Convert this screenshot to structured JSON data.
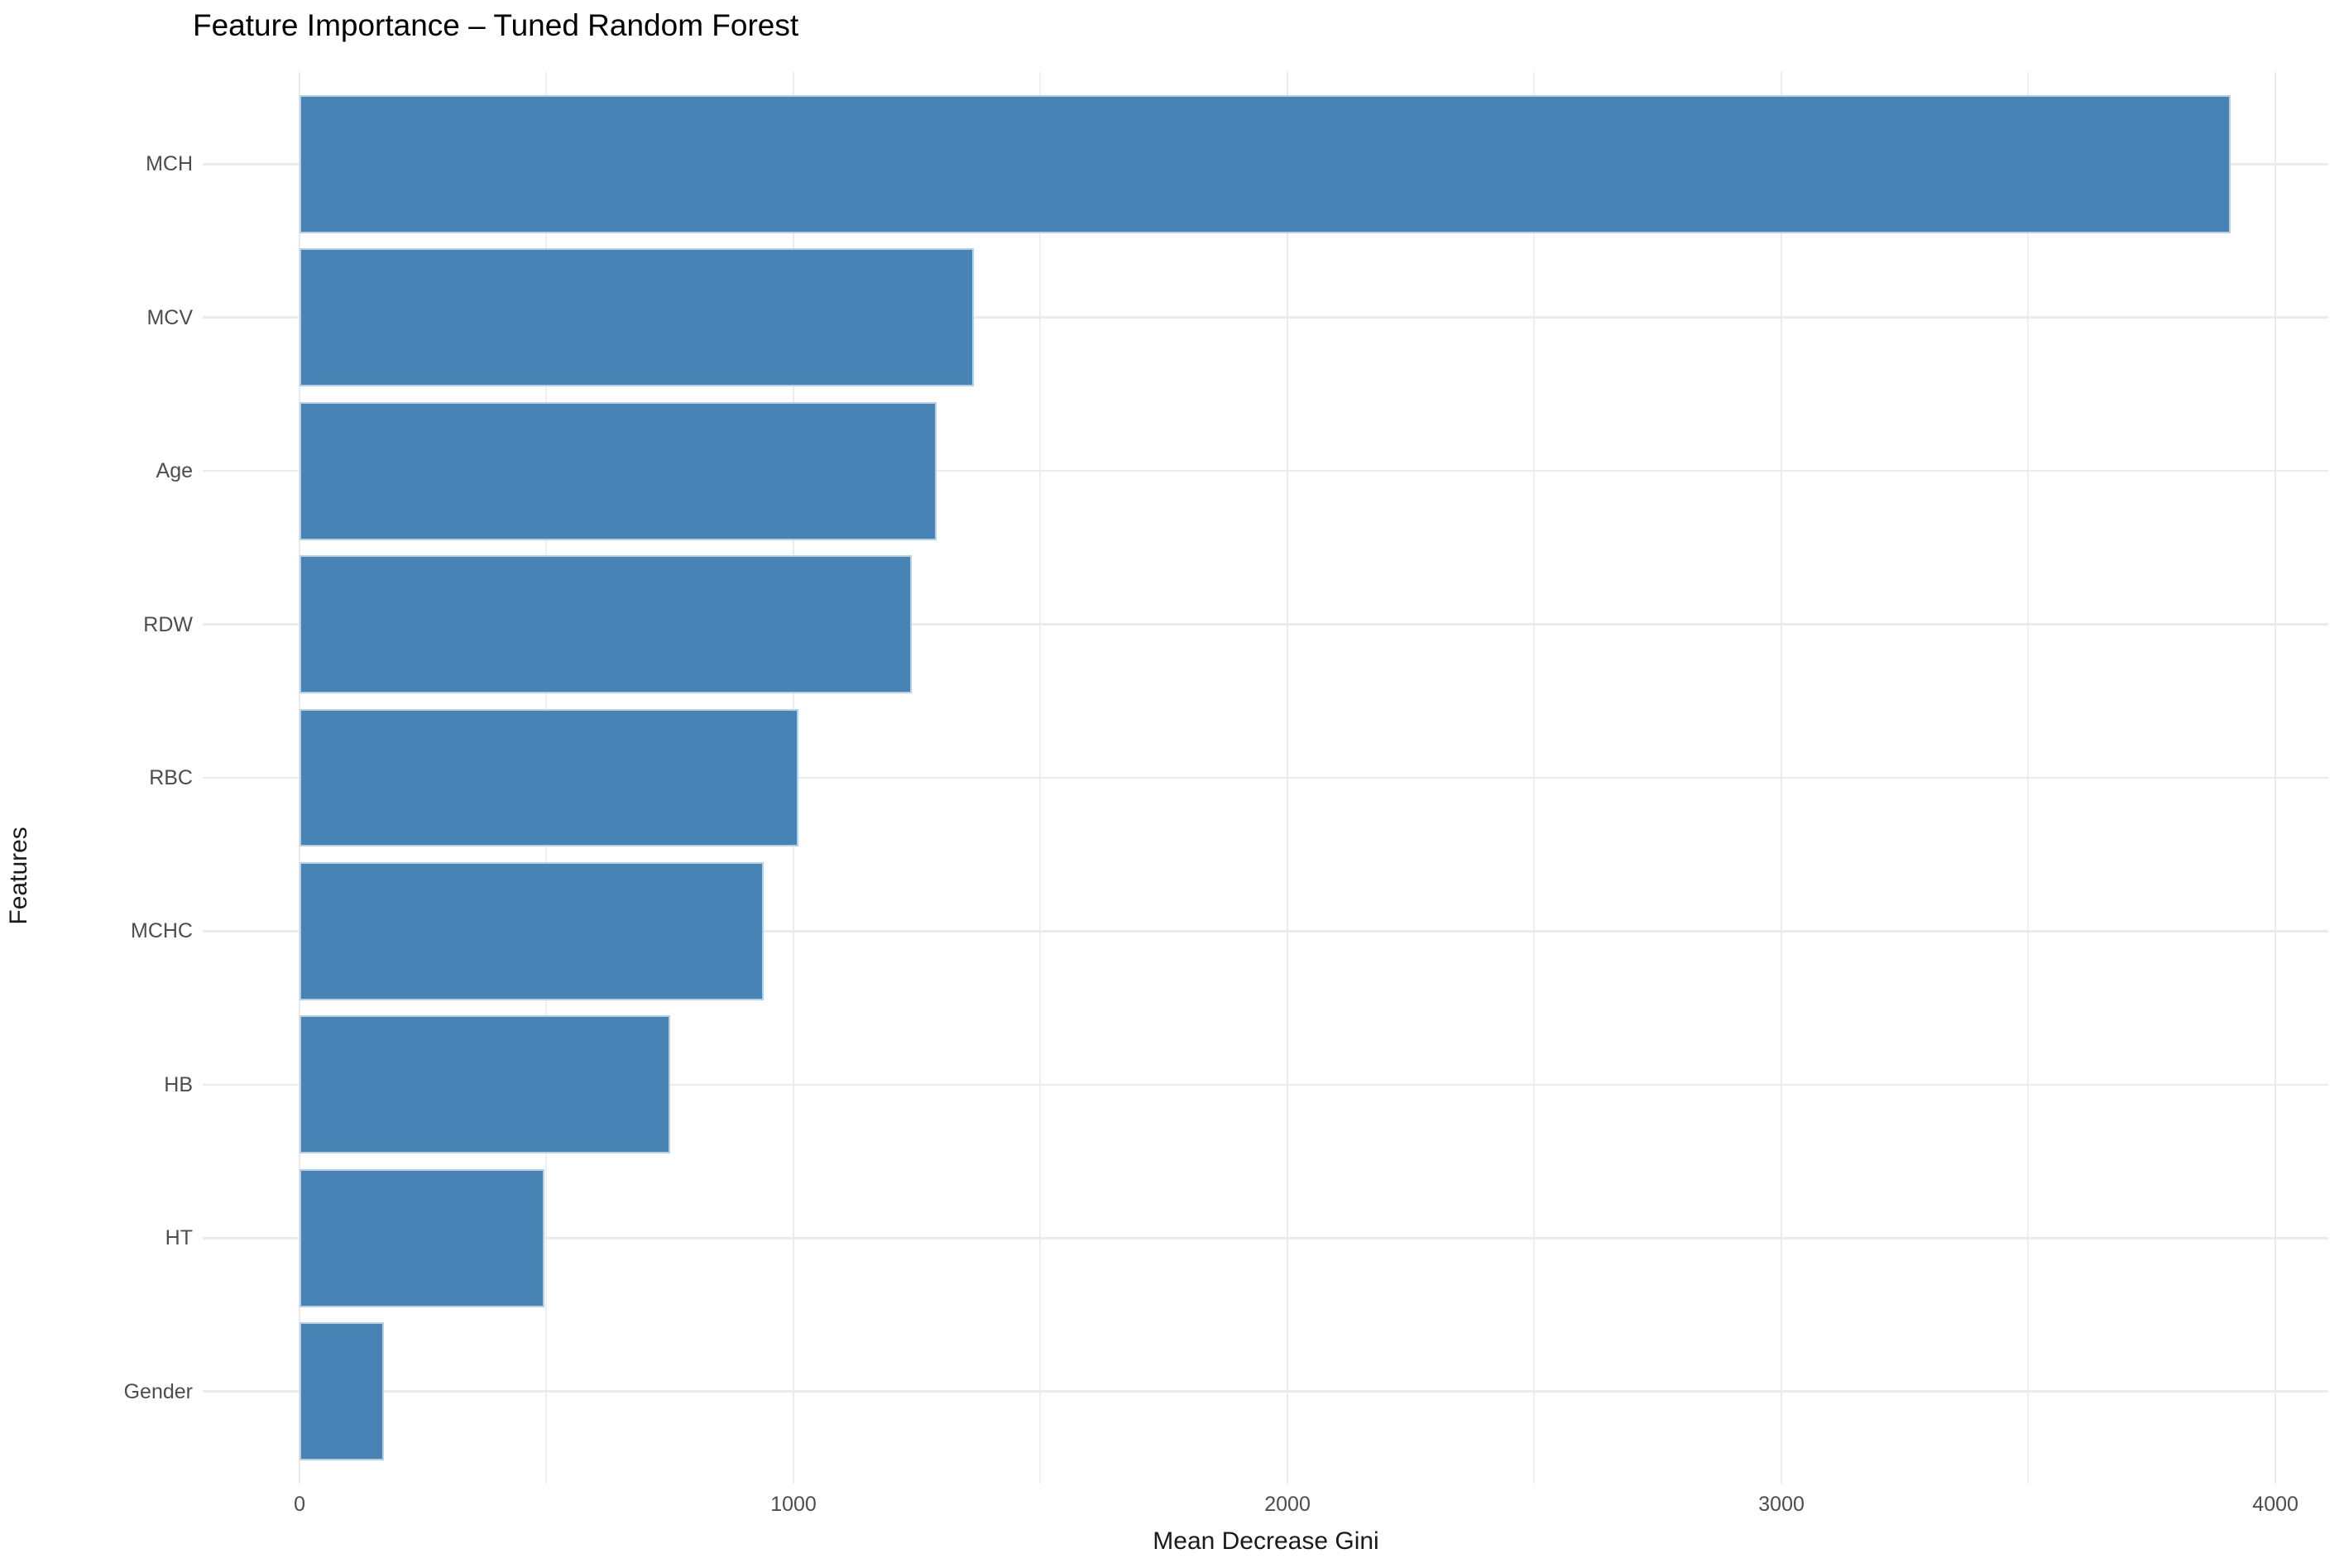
{
  "title": "Feature Importance – Tuned Random Forest",
  "chart_data": {
    "type": "bar",
    "orientation": "horizontal",
    "title": "Feature Importance – Tuned Random Forest",
    "xlabel": "Mean Decrease Gini",
    "ylabel": "Features",
    "categories": [
      "MCH",
      "MCV",
      "Age",
      "RDW",
      "RBC",
      "MCHC",
      "HB",
      "HT",
      "Gender"
    ],
    "values": [
      3910,
      1365,
      1290,
      1240,
      1010,
      940,
      750,
      495,
      170
    ],
    "x_ticks": [
      0,
      1000,
      2000,
      3000,
      4000
    ],
    "x_minor_ticks": [
      500,
      1500,
      2500,
      3500
    ],
    "xlim": [
      0,
      4000
    ],
    "grid": "on",
    "legend": "none",
    "colors": {
      "bar_fill": "#4783b4",
      "bar_border": "#b7cfe4",
      "grid_major": "#ebebeb",
      "grid_minor": "#efefef",
      "axis_text": "#4d4d4d",
      "axis_title": "#1a1a1a",
      "plot_title": "#000000"
    }
  }
}
